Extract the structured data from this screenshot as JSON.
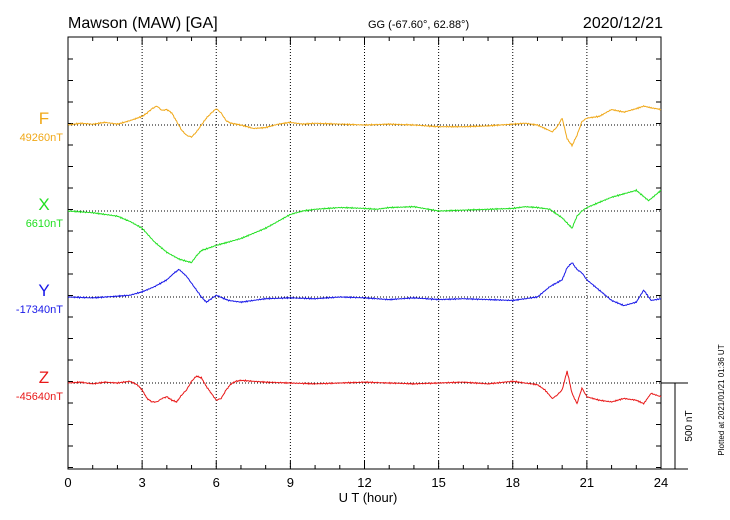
{
  "chart_data": {
    "type": "line",
    "title": "Mawson (MAW)  [GA]",
    "coords": "GG (-67.60°,  62.88°)",
    "date": "2020/12/21",
    "xlabel": "U T (hour)",
    "xlim": [
      0,
      24
    ],
    "x_ticks": [
      "0",
      "3",
      "6",
      "9",
      "12",
      "15",
      "18",
      "21",
      "24"
    ],
    "grid": true,
    "scale_bar_label": "500 nT",
    "scale_bar_nT": 500,
    "plotted_note": "Plotted at 2021/01/21 01:36 UT",
    "series": [
      {
        "name": "F",
        "baseline_label": "49260nT",
        "color": "#f0a818",
        "x": [
          0,
          0.5,
          1,
          1.5,
          2,
          2.5,
          3,
          3.2,
          3.4,
          3.6,
          3.8,
          4,
          4.2,
          4.4,
          4.6,
          4.8,
          5,
          5.2,
          5.4,
          5.6,
          5.8,
          6,
          6.2,
          6.4,
          6.6,
          6.8,
          7,
          7.5,
          8,
          8.5,
          9,
          9.5,
          10,
          11,
          12,
          13,
          14,
          15,
          16,
          17,
          18,
          18.5,
          19,
          19.3,
          19.6,
          19.8,
          20,
          20.2,
          20.4,
          20.6,
          20.8,
          21,
          21.5,
          22,
          22.5,
          23,
          23.3,
          23.6,
          24
        ],
        "values": [
          0,
          10,
          5,
          15,
          5,
          25,
          50,
          70,
          95,
          110,
          85,
          90,
          70,
          20,
          -30,
          -60,
          -70,
          -40,
          0,
          40,
          70,
          95,
          70,
          25,
          10,
          5,
          0,
          -20,
          -15,
          5,
          15,
          5,
          10,
          5,
          0,
          5,
          0,
          -10,
          -10,
          -5,
          5,
          10,
          0,
          -20,
          -40,
          -10,
          40,
          -80,
          -120,
          -60,
          20,
          40,
          50,
          90,
          75,
          95,
          110,
          100,
          90
        ]
      },
      {
        "name": "X",
        "baseline_label": "6610nT",
        "color": "#22e022",
        "x": [
          0,
          1,
          2,
          2.5,
          3,
          3.5,
          4,
          4.5,
          5,
          5.2,
          5.4,
          5.6,
          6,
          6.5,
          7,
          7.5,
          8,
          8.5,
          9,
          9.5,
          10,
          10.5,
          11,
          11.5,
          12,
          12.5,
          13,
          14,
          15,
          16,
          17,
          18,
          18.5,
          19,
          19.5,
          20,
          20.2,
          20.4,
          20.6,
          20.8,
          21,
          21.5,
          22,
          22.5,
          23,
          23.5,
          24
        ],
        "values": [
          0,
          -10,
          -30,
          -60,
          -100,
          -180,
          -240,
          -280,
          -300,
          -260,
          -230,
          -220,
          -200,
          -180,
          -160,
          -130,
          -100,
          -60,
          -20,
          0,
          10,
          15,
          20,
          18,
          15,
          10,
          20,
          25,
          0,
          5,
          10,
          15,
          25,
          20,
          10,
          -40,
          -70,
          -100,
          -30,
          0,
          20,
          50,
          80,
          100,
          120,
          60,
          120
        ]
      },
      {
        "name": "Y",
        "baseline_label": "-17340nT",
        "color": "#1818e8",
        "x": [
          0,
          1,
          2,
          2.5,
          3,
          3.5,
          4,
          4.3,
          4.5,
          4.8,
          5,
          5.2,
          5.4,
          5.6,
          5.8,
          6,
          6.5,
          7,
          8,
          9,
          10,
          11,
          12,
          13,
          14,
          15,
          16,
          17,
          18,
          18.5,
          19,
          19.5,
          20,
          20.2,
          20.4,
          20.6,
          20.8,
          21,
          21.5,
          22,
          22.5,
          23,
          23.3,
          23.6,
          24
        ],
        "values": [
          0,
          -5,
          5,
          10,
          30,
          60,
          100,
          140,
          160,
          120,
          80,
          40,
          0,
          -30,
          -10,
          10,
          -20,
          -30,
          -10,
          -5,
          -10,
          0,
          -5,
          -15,
          -5,
          -15,
          -10,
          -15,
          -20,
          -10,
          0,
          60,
          100,
          170,
          200,
          160,
          140,
          100,
          40,
          -20,
          -50,
          -30,
          40,
          -20,
          -10
        ]
      },
      {
        "name": "Z",
        "baseline_label": "-45640nT",
        "color": "#e81818",
        "x": [
          0,
          0.5,
          1,
          1.5,
          2,
          2.5,
          2.8,
          3,
          3.2,
          3.4,
          3.6,
          3.8,
          4,
          4.2,
          4.4,
          4.6,
          4.8,
          5,
          5.2,
          5.4,
          5.6,
          5.8,
          6,
          6.2,
          6.4,
          6.6,
          6.8,
          7,
          7.5,
          8,
          9,
          10,
          11,
          12,
          13,
          14,
          15,
          16,
          17,
          18,
          18.5,
          19,
          19.3,
          19.6,
          19.8,
          20,
          20.2,
          20.4,
          20.6,
          20.8,
          21,
          21.5,
          22,
          22.5,
          23,
          23.3,
          23.6,
          24
        ],
        "values": [
          0,
          5,
          -5,
          5,
          0,
          10,
          -10,
          -40,
          -90,
          -110,
          -110,
          -90,
          -80,
          -100,
          -110,
          -70,
          -40,
          10,
          40,
          30,
          -20,
          -60,
          -100,
          -90,
          -40,
          -5,
          10,
          15,
          10,
          5,
          0,
          -5,
          0,
          5,
          0,
          -5,
          0,
          5,
          -5,
          10,
          0,
          -10,
          -40,
          -90,
          -70,
          -40,
          70,
          -60,
          -120,
          -30,
          -80,
          -100,
          -110,
          -90,
          -100,
          -120,
          -60,
          -80
        ]
      }
    ]
  }
}
